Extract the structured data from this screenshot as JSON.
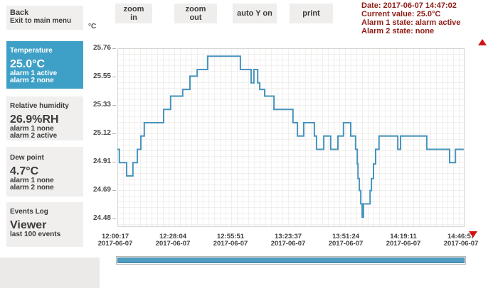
{
  "sidebar": {
    "back": {
      "title": "Back",
      "subtitle": "Exit to main menu"
    },
    "panels": {
      "temperature": {
        "label": "Temperature",
        "value": "25.0°C",
        "alarm1": "alarm 1 active",
        "alarm2": "alarm 2 none"
      },
      "humidity": {
        "label": "Relative humidity",
        "value": "26.9%RH",
        "alarm1": "alarm 1 none",
        "alarm2": "alarm 2 active"
      },
      "dew_point": {
        "label": "Dew point",
        "value": "4.7°C",
        "alarm1": "alarm 1 none",
        "alarm2": "alarm 2 none"
      },
      "events": {
        "label": "Events Log",
        "value": "Viewer",
        "subtitle": "last 100 events"
      }
    }
  },
  "toolbar": {
    "buttons": [
      "zoom in",
      "zoom out",
      "auto Y on",
      "print"
    ]
  },
  "status": {
    "date": "Date: 2017-06-07 14:47:02",
    "current": "Current value: 25.0°C",
    "alarm1": "Alarm 1 state: alarm active",
    "alarm2": "Alarm 2 state: none"
  },
  "colors": {
    "accent_blue": "#3fa0c7",
    "line_blue": "#4794bd",
    "scroll_blue": "#4f9cc0",
    "alert_red": "#d11414",
    "status_text": "#8e1b15",
    "grid_line": "#e3e0dd",
    "grid_border": "#d8d5d2"
  },
  "chart_data": {
    "type": "line",
    "step": true,
    "series_name": "Temperature",
    "unit_label": "°C",
    "grid": true,
    "y_axis": {
      "max": 25.76,
      "min": 24.48,
      "tick_step": 0.2133
    },
    "y_ticks": [
      "25.76",
      "25.55",
      "25.33",
      "25.12",
      "24.91",
      "24.69",
      "24.48"
    ],
    "x_ticks": [
      {
        "time": "12:00:17",
        "date": "2017-06-07"
      },
      {
        "time": "12:28:04",
        "date": "2017-06-07"
      },
      {
        "time": "12:55:51",
        "date": "2017-06-07"
      },
      {
        "time": "13:23:37",
        "date": "2017-06-07"
      },
      {
        "time": "13:51:24",
        "date": "2017-06-07"
      },
      {
        "time": "14:19:11",
        "date": "2017-06-07"
      },
      {
        "time": "14:46:57",
        "date": "2017-06-07"
      }
    ],
    "points": [
      [
        0.006,
        25.0
      ],
      [
        0.012,
        24.9
      ],
      [
        0.033,
        24.8
      ],
      [
        0.051,
        24.9
      ],
      [
        0.064,
        25.0
      ],
      [
        0.074,
        25.1
      ],
      [
        0.084,
        25.2
      ],
      [
        0.14,
        25.3
      ],
      [
        0.16,
        25.4
      ],
      [
        0.195,
        25.45
      ],
      [
        0.216,
        25.55
      ],
      [
        0.237,
        25.6
      ],
      [
        0.267,
        25.7
      ],
      [
        0.362,
        25.6
      ],
      [
        0.393,
        25.5
      ],
      [
        0.401,
        25.6
      ],
      [
        0.412,
        25.5
      ],
      [
        0.418,
        25.45
      ],
      [
        0.432,
        25.4
      ],
      [
        0.459,
        25.3
      ],
      [
        0.514,
        25.2
      ],
      [
        0.527,
        25.1
      ],
      [
        0.545,
        25.2
      ],
      [
        0.576,
        25.1
      ],
      [
        0.582,
        25.0
      ],
      [
        0.603,
        25.1
      ],
      [
        0.623,
        25.0
      ],
      [
        0.644,
        25.1
      ],
      [
        0.66,
        25.2
      ],
      [
        0.681,
        25.1
      ],
      [
        0.695,
        25.0
      ],
      [
        0.7,
        24.89
      ],
      [
        0.702,
        24.78
      ],
      [
        0.706,
        24.69
      ],
      [
        0.71,
        24.59
      ],
      [
        0.714,
        24.49
      ],
      [
        0.718,
        24.59
      ],
      [
        0.737,
        24.69
      ],
      [
        0.741,
        24.78
      ],
      [
        0.747,
        24.89
      ],
      [
        0.753,
        25.0
      ],
      [
        0.763,
        25.1
      ],
      [
        0.817,
        25.0
      ],
      [
        0.825,
        25.1
      ],
      [
        0.901,
        25.0
      ],
      [
        0.967,
        24.9
      ],
      [
        0.984,
        25.0
      ]
    ],
    "end_t": 1.008
  }
}
